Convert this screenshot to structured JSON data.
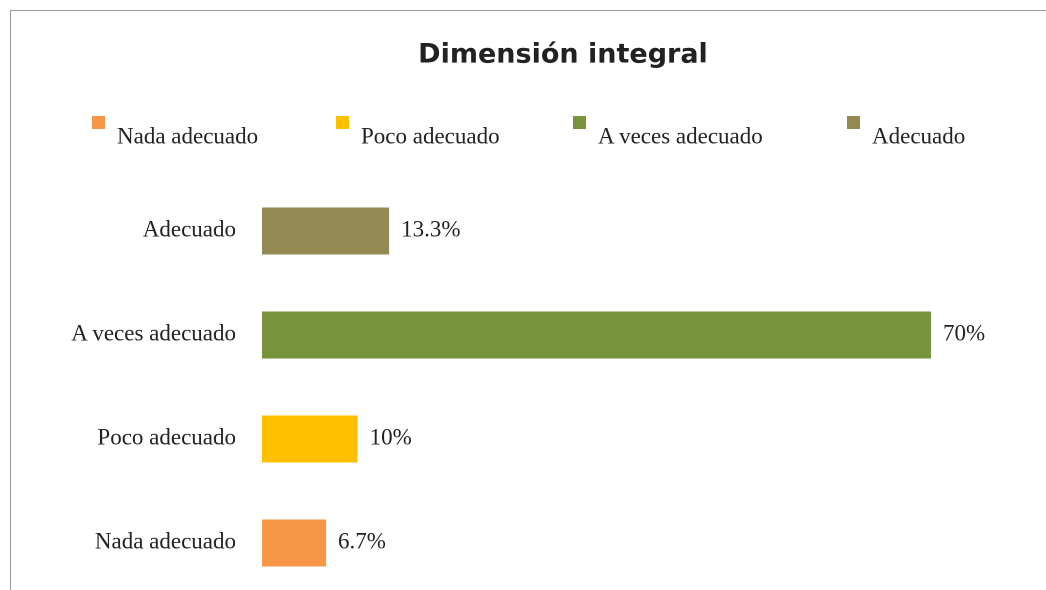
{
  "chart_data": {
    "type": "bar",
    "orientation": "horizontal",
    "title": "Dimensión integral",
    "categories": [
      "Nada adecuado",
      "Poco adecuado",
      "A veces adecuado",
      "Adecuado"
    ],
    "values": [
      6.7,
      10,
      70,
      13.3
    ],
    "value_labels": [
      "6.7%",
      "10%",
      "70%",
      "13.3%"
    ],
    "colors": [
      "#f79646",
      "#ffc000",
      "#77933c",
      "#948a54"
    ],
    "legend": "top"
  }
}
